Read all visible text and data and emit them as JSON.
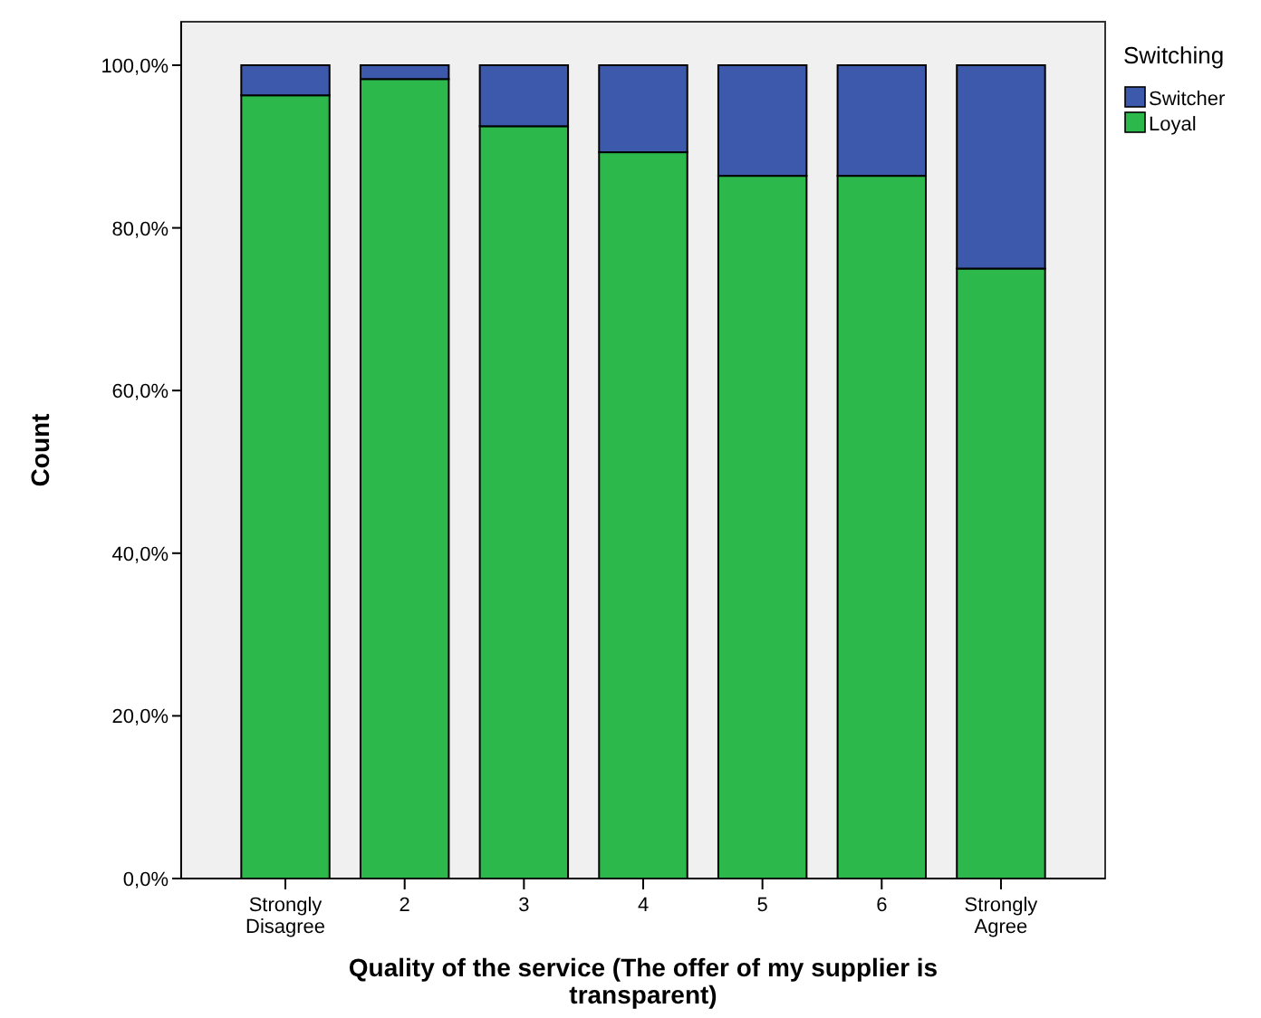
{
  "chart_data": {
    "type": "bar",
    "stacked": true,
    "xlabel": "Quality of the service (The offer of my supplier is transparent)",
    "ylabel": "Count",
    "legend_title": "Switching",
    "legend": "top right",
    "categories": [
      "Strongly Disagree",
      "2",
      "3",
      "4",
      "5",
      "6",
      "Strongly Agree"
    ],
    "series": [
      {
        "name": "Loyal",
        "color": "#2db84b",
        "values": [
          96.3,
          98.3,
          92.5,
          89.3,
          86.4,
          86.4,
          75.0
        ]
      },
      {
        "name": "Switcher",
        "color": "#3d59ab",
        "values": [
          3.7,
          1.7,
          7.5,
          10.7,
          13.6,
          13.6,
          25.0
        ]
      }
    ],
    "ylim": [
      0,
      100
    ],
    "yticks": [
      {
        "value": 0,
        "label": "0,0%"
      },
      {
        "value": 20,
        "label": "20,0%"
      },
      {
        "value": 40,
        "label": "40,0%"
      },
      {
        "value": 60,
        "label": "60,0%"
      },
      {
        "value": 80,
        "label": "80,0%"
      },
      {
        "value": 100,
        "label": "100,0%"
      }
    ],
    "grid": false
  }
}
